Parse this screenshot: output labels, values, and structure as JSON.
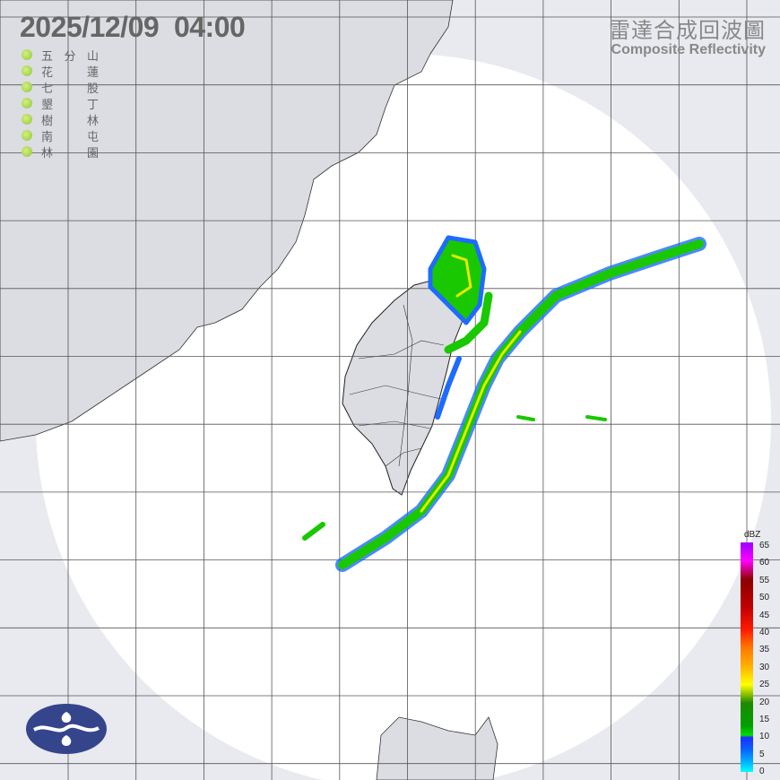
{
  "header": {
    "datetime": "2025/12/09  04:00",
    "product_zh": "雷達合成回波圖",
    "product_en": "Composite Reflectivity"
  },
  "stations": [
    {
      "name": [
        "五",
        "分",
        "山"
      ],
      "status_color": "#8cc63f"
    },
    {
      "name": [
        "花",
        "",
        "蓮"
      ],
      "status_color": "#8cc63f"
    },
    {
      "name": [
        "七",
        "",
        "股"
      ],
      "status_color": "#8cc63f"
    },
    {
      "name": [
        "墾",
        "",
        "丁"
      ],
      "status_color": "#8cc63f"
    },
    {
      "name": [
        "樹",
        "",
        "林"
      ],
      "status_color": "#8cc63f"
    },
    {
      "name": [
        "南",
        "",
        "屯"
      ],
      "status_color": "#8cc63f"
    },
    {
      "name": [
        "林",
        "",
        "園"
      ],
      "status_color": "#8cc63f"
    }
  ],
  "colorbar": {
    "unit": "dBZ",
    "labels": [
      "65",
      "60",
      "55",
      "50",
      "45",
      "40",
      "35",
      "30",
      "25",
      "20",
      "15",
      "10",
      "5",
      "0"
    ]
  },
  "logo": {
    "icon": "cwa-logo-icon"
  }
}
